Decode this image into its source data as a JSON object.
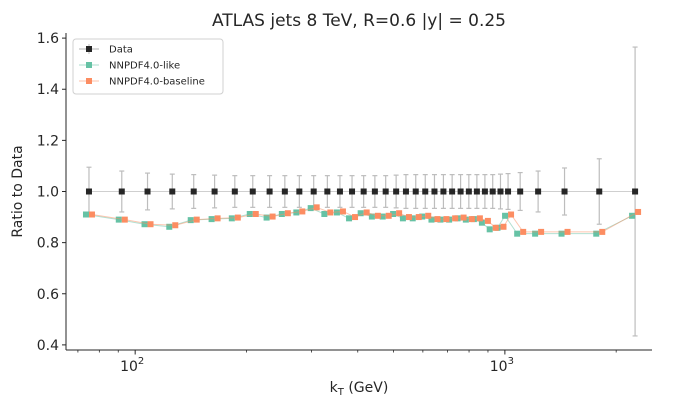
{
  "chart_data": {
    "type": "scatter",
    "title": "ATLAS jets 8 TeV, R=0.6 |y| = 0.25",
    "xlabel": "k_T (GeV)",
    "xlabel_main": "k",
    "xlabel_sub": "T",
    "xlabel_unit": " (GeV)",
    "ylabel": "Ratio to Data",
    "xscale": "log",
    "xlim": [
      65,
      2500
    ],
    "ylim": [
      0.38,
      1.62
    ],
    "yticks": [
      0.4,
      0.6,
      0.8,
      1.0,
      1.2,
      1.4,
      1.6
    ],
    "ytick_labels": [
      "0.4",
      "0.6",
      "0.8",
      "1.0",
      "1.2",
      "1.4",
      "1.6"
    ],
    "xticks_major": [
      100,
      1000
    ],
    "xtick_labels": [
      {
        "base": "10",
        "exp": "2"
      },
      {
        "base": "10",
        "exp": "3"
      }
    ],
    "legend_position": "top-left",
    "grid": false,
    "series": [
      {
        "name": "Data",
        "color": "#262626",
        "marker": "square",
        "x": [
          75,
          92,
          108,
          126,
          144,
          164,
          186,
          208,
          231,
          254,
          278,
          304,
          331,
          358,
          386,
          415,
          445,
          476,
          508,
          540,
          574,
          609,
          645,
          682,
          720,
          759,
          799,
          840,
          883,
          927,
          973,
          1020,
          1100,
          1230,
          1450,
          1800,
          2250
        ],
        "y": [
          1.0,
          1.0,
          1.0,
          1.0,
          1.0,
          1.0,
          1.0,
          1.0,
          1.0,
          1.0,
          1.0,
          1.0,
          1.0,
          1.0,
          1.0,
          1.0,
          1.0,
          1.0,
          1.0,
          1.0,
          1.0,
          1.0,
          1.0,
          1.0,
          1.0,
          1.0,
          1.0,
          1.0,
          1.0,
          1.0,
          1.0,
          1.0,
          1.0,
          1.0,
          1.0,
          1.0,
          1.0
        ],
        "yerr": [
          0.095,
          0.08,
          0.072,
          0.068,
          0.066,
          0.064,
          0.062,
          0.062,
          0.062,
          0.062,
          0.062,
          0.062,
          0.062,
          0.062,
          0.062,
          0.062,
          0.062,
          0.062,
          0.064,
          0.066,
          0.066,
          0.066,
          0.066,
          0.066,
          0.066,
          0.066,
          0.066,
          0.066,
          0.066,
          0.066,
          0.068,
          0.07,
          0.074,
          0.08,
          0.092,
          0.128,
          0.565
        ]
      },
      {
        "name": "NNPDF4.0-like",
        "color": "#66c2a5",
        "marker": "square",
        "x": [
          75,
          92,
          108,
          126,
          144,
          164,
          186,
          208,
          231,
          254,
          278,
          304,
          331,
          358,
          386,
          415,
          445,
          476,
          508,
          540,
          574,
          609,
          645,
          682,
          720,
          759,
          799,
          840,
          883,
          927,
          973,
          1020,
          1100,
          1230,
          1450,
          1800,
          2250
        ],
        "y": [
          0.91,
          0.89,
          0.872,
          0.862,
          0.888,
          0.892,
          0.895,
          0.912,
          0.898,
          0.912,
          0.918,
          0.935,
          0.912,
          0.918,
          0.895,
          0.915,
          0.902,
          0.902,
          0.912,
          0.895,
          0.895,
          0.902,
          0.89,
          0.89,
          0.89,
          0.895,
          0.89,
          0.892,
          0.878,
          0.852,
          0.858,
          0.905,
          0.835,
          0.835,
          0.835,
          0.835,
          0.905
        ]
      },
      {
        "name": "NNPDF4.0-baseline",
        "color": "#fc8d62",
        "marker": "square",
        "x": [
          75,
          92,
          108,
          126,
          144,
          164,
          186,
          208,
          231,
          254,
          278,
          304,
          331,
          358,
          386,
          415,
          445,
          476,
          508,
          540,
          574,
          609,
          645,
          682,
          720,
          759,
          799,
          840,
          883,
          927,
          973,
          1020,
          1100,
          1230,
          1450,
          1800,
          2250
        ],
        "y": [
          0.91,
          0.89,
          0.872,
          0.868,
          0.89,
          0.895,
          0.898,
          0.912,
          0.902,
          0.915,
          0.922,
          0.938,
          0.918,
          0.922,
          0.9,
          0.918,
          0.905,
          0.905,
          0.915,
          0.9,
          0.9,
          0.905,
          0.892,
          0.892,
          0.895,
          0.898,
          0.892,
          0.895,
          0.885,
          0.858,
          0.862,
          0.91,
          0.842,
          0.842,
          0.842,
          0.842,
          0.92
        ]
      }
    ]
  }
}
